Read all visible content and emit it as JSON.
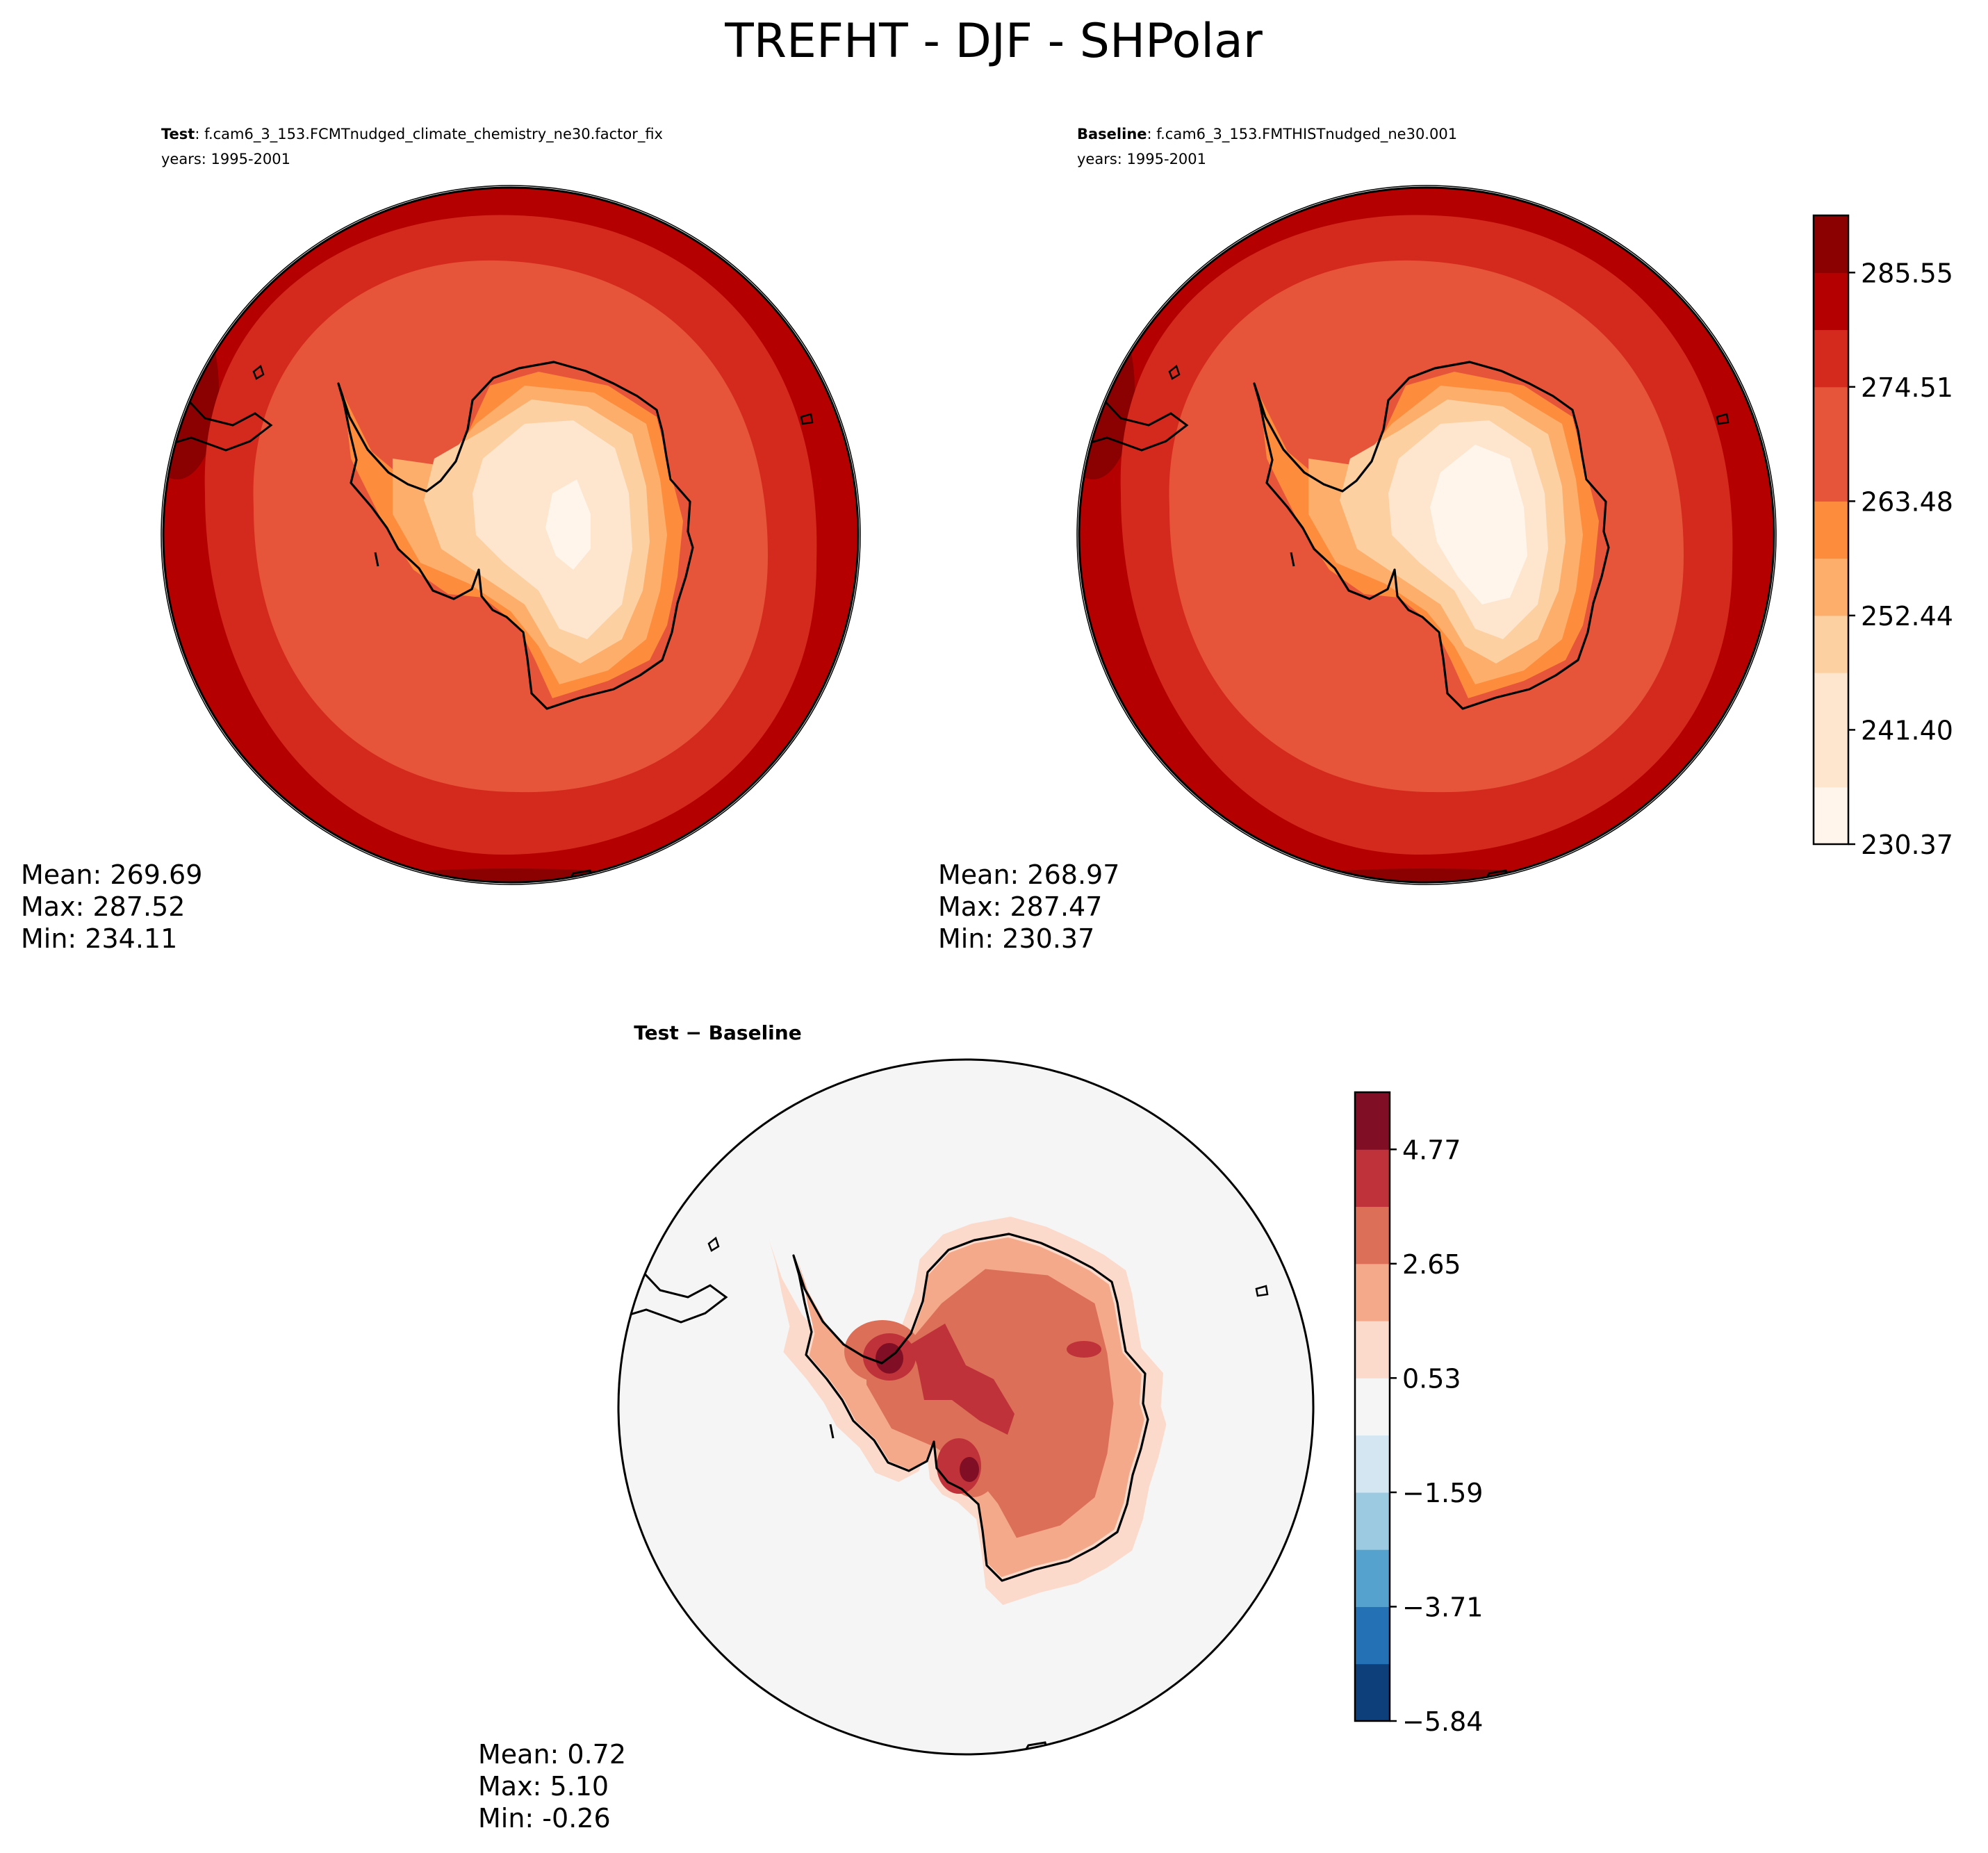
{
  "figure": {
    "title": "TREFHT - DJF - SHPolar"
  },
  "colors": {
    "reds": [
      "#fff5eb",
      "#fee6ce",
      "#fdd0a2",
      "#fdae6b",
      "#fd8d3c",
      "#e6553a",
      "#d42a1d",
      "#b50000",
      "#8b0000"
    ],
    "diff": [
      "#0d3f7a",
      "#2471b6",
      "#56a2cf",
      "#9ccae1",
      "#d4e6f2",
      "#f5f5f5",
      "#fbdacb",
      "#f4a98a",
      "#dc6f58",
      "#c0323a",
      "#800f25"
    ],
    "coast": "#000000"
  },
  "panels": {
    "test": {
      "label_bold": "Test",
      "label_rest": ": f.cam6_3_153.FCMTnudged_climate_chemistry_ne30.factor_fix",
      "years": "years: 1995-2001",
      "stats": [
        "Mean: 269.69",
        "Max: 287.52",
        "Min: 234.11"
      ]
    },
    "baseline": {
      "label_bold": "Baseline",
      "label_rest": ": f.cam6_3_153.FMTHISTnudged_ne30.001",
      "years": "years: 1995-2001",
      "stats": [
        "Mean: 268.97",
        "Max: 287.47",
        "Min: 230.37"
      ]
    },
    "diff": {
      "title": "Test − Baseline",
      "stats": [
        "Mean:  0.72",
        "Max:  5.10",
        "Min: -0.26"
      ]
    }
  },
  "colorbars": {
    "abs": {
      "ticks": [
        "285.55",
        "274.51",
        "263.48",
        "252.44",
        "241.40",
        "230.37"
      ]
    },
    "diff": {
      "ticks": [
        "4.77",
        "2.65",
        "0.53",
        "−1.59",
        "−3.71",
        "−5.84"
      ]
    }
  },
  "chart_data": [
    {
      "type": "heatmap",
      "title": "TREFHT - DJF - SHPolar",
      "panel": "Test",
      "case": "f.cam6_3_153.FCMTnudged_climate_chemistry_ne30.factor_fix",
      "years": "1995-2001",
      "mean": 269.69,
      "max": 287.52,
      "min": 234.11,
      "levels": [
        230.37,
        235.89,
        241.4,
        246.92,
        252.44,
        257.96,
        263.48,
        268.99,
        274.51,
        280.03,
        285.55,
        291.07
      ]
    },
    {
      "type": "heatmap",
      "panel": "Baseline",
      "case": "f.cam6_3_153.FMTHISTnudged_ne30.001",
      "years": "1995-2001",
      "mean": 268.97,
      "max": 287.47,
      "min": 230.37,
      "levels": [
        230.37,
        235.89,
        241.4,
        246.92,
        252.44,
        257.96,
        263.48,
        268.99,
        274.51,
        280.03,
        285.55,
        291.07
      ]
    },
    {
      "type": "heatmap",
      "panel": "Test − Baseline",
      "mean": 0.72,
      "max": 5.1,
      "min": -0.26,
      "levels": [
        -5.84,
        -4.78,
        -3.71,
        -2.65,
        -1.59,
        -0.53,
        0.53,
        1.59,
        2.65,
        3.71,
        4.77,
        5.84
      ]
    }
  ]
}
